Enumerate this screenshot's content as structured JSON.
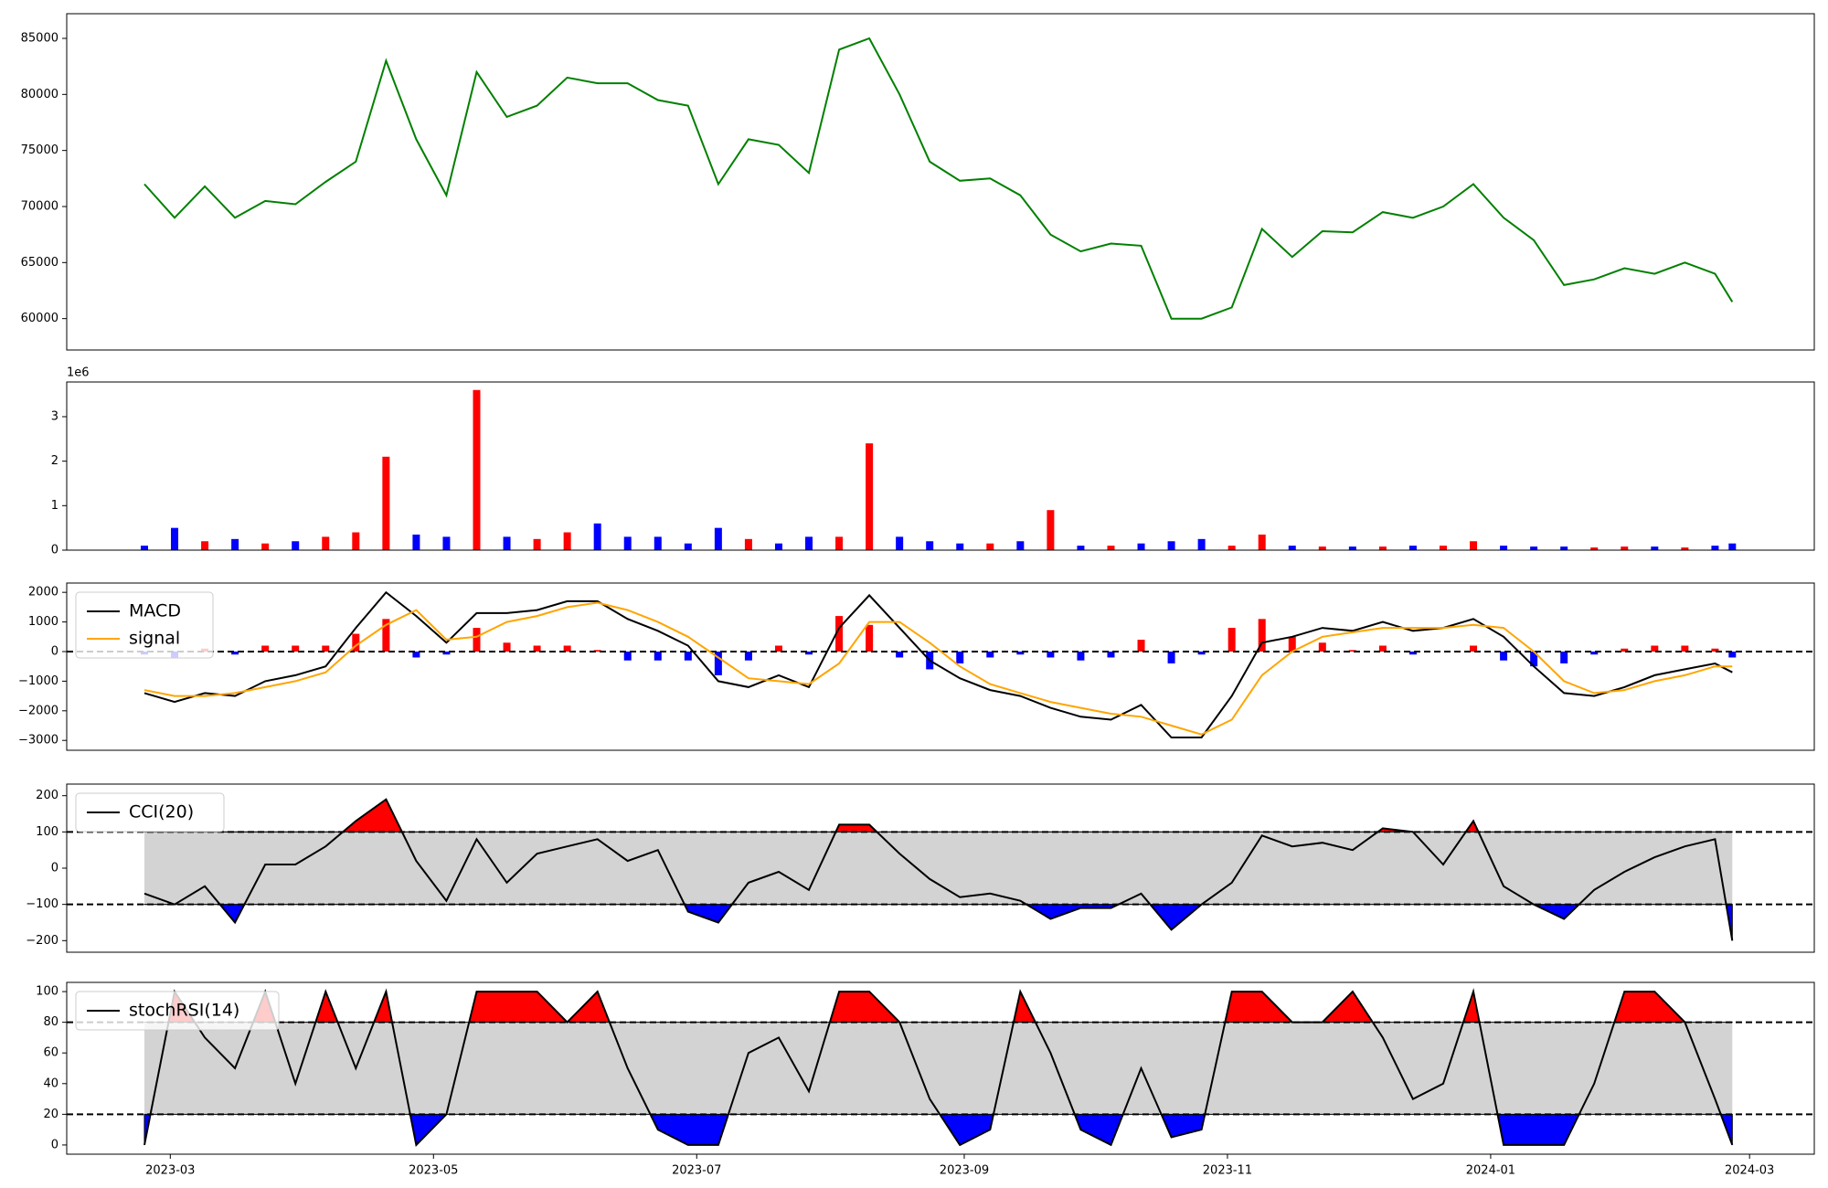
{
  "chart_data": [
    {
      "type": "line",
      "x": [
        "2023-02-23",
        "2023-03-02",
        "2023-03-09",
        "2023-03-16",
        "2023-03-23",
        "2023-03-30",
        "2023-04-06",
        "2023-04-13",
        "2023-04-20",
        "2023-04-27",
        "2023-05-04",
        "2023-05-11",
        "2023-05-18",
        "2023-05-25",
        "2023-06-01",
        "2023-06-08",
        "2023-06-15",
        "2023-06-22",
        "2023-06-29",
        "2023-07-06",
        "2023-07-13",
        "2023-07-20",
        "2023-07-27",
        "2023-08-03",
        "2023-08-10",
        "2023-08-17",
        "2023-08-24",
        "2023-08-31",
        "2023-09-07",
        "2023-09-14",
        "2023-09-21",
        "2023-09-28",
        "2023-10-05",
        "2023-10-12",
        "2023-10-19",
        "2023-10-26",
        "2023-11-02",
        "2023-11-09",
        "2023-11-16",
        "2023-11-23",
        "2023-11-30",
        "2023-12-07",
        "2023-12-14",
        "2023-12-21",
        "2023-12-28",
        "2024-01-04",
        "2024-01-11",
        "2024-01-18",
        "2024-01-25",
        "2024-02-01",
        "2024-02-08",
        "2024-02-15",
        "2024-02-22",
        "2024-02-26"
      ],
      "series": [
        {
          "color": "#008000",
          "values": [
            72000,
            69000,
            71800,
            69000,
            70500,
            70200,
            72200,
            74000,
            83000,
            76000,
            71000,
            82000,
            78000,
            79000,
            81500,
            81000,
            81000,
            79500,
            79000,
            72000,
            76000,
            75500,
            73000,
            84000,
            85000,
            80000,
            74000,
            72300,
            72500,
            71000,
            67500,
            66000,
            66700,
            66500,
            60000,
            60000,
            61000,
            68000,
            65500,
            67800,
            67700,
            69500,
            69000,
            70000,
            72000,
            69000,
            67000,
            63000,
            63500,
            64500,
            64000,
            65000,
            64000,
            61500
          ]
        }
      ],
      "xlim": [
        "2023-02-05",
        "2024-03-16"
      ],
      "ylim": [
        57200,
        87200
      ],
      "yticks": [
        60000,
        65000,
        70000,
        75000,
        80000,
        85000
      ]
    },
    {
      "type": "bar",
      "x": [
        "2023-02-23",
        "2023-03-02",
        "2023-03-09",
        "2023-03-16",
        "2023-03-23",
        "2023-03-30",
        "2023-04-06",
        "2023-04-13",
        "2023-04-20",
        "2023-04-27",
        "2023-05-04",
        "2023-05-11",
        "2023-05-18",
        "2023-05-25",
        "2023-06-01",
        "2023-06-08",
        "2023-06-15",
        "2023-06-22",
        "2023-06-29",
        "2023-07-06",
        "2023-07-13",
        "2023-07-20",
        "2023-07-27",
        "2023-08-03",
        "2023-08-10",
        "2023-08-17",
        "2023-08-24",
        "2023-08-31",
        "2023-09-07",
        "2023-09-14",
        "2023-09-21",
        "2023-09-28",
        "2023-10-05",
        "2023-10-12",
        "2023-10-19",
        "2023-10-26",
        "2023-11-02",
        "2023-11-09",
        "2023-11-16",
        "2023-11-23",
        "2023-11-30",
        "2023-12-07",
        "2023-12-14",
        "2023-12-21",
        "2023-12-28",
        "2024-01-04",
        "2024-01-11",
        "2024-01-18",
        "2024-01-25",
        "2024-02-01",
        "2024-02-08",
        "2024-02-15",
        "2024-02-22",
        "2024-02-26"
      ],
      "values": [
        100000,
        500000,
        200000,
        250000,
        150000,
        200000,
        300000,
        400000,
        2100000,
        350000,
        300000,
        3600000,
        300000,
        250000,
        400000,
        600000,
        300000,
        300000,
        150000,
        500000,
        250000,
        150000,
        300000,
        300000,
        2400000,
        300000,
        200000,
        150000,
        150000,
        200000,
        900000,
        100000,
        100000,
        150000,
        200000,
        250000,
        100000,
        350000,
        100000,
        80000,
        80000,
        80000,
        100000,
        100000,
        200000,
        100000,
        80000,
        80000,
        60000,
        80000,
        80000,
        60000,
        100000,
        150000
      ],
      "colors": [
        "blue",
        "blue",
        "red",
        "blue",
        "red",
        "blue",
        "red",
        "red",
        "red",
        "blue",
        "blue",
        "red",
        "blue",
        "red",
        "red",
        "blue",
        "blue",
        "blue",
        "blue",
        "blue",
        "red",
        "blue",
        "blue",
        "red",
        "red",
        "blue",
        "blue",
        "blue",
        "red",
        "blue",
        "red",
        "blue",
        "red",
        "blue",
        "blue",
        "blue",
        "red",
        "red",
        "blue",
        "red",
        "blue",
        "red",
        "blue",
        "red",
        "red",
        "blue",
        "blue",
        "blue",
        "red",
        "red",
        "blue",
        "red",
        "blue",
        "blue"
      ],
      "xlim": [
        "2023-02-05",
        "2024-03-16"
      ],
      "ylim": [
        0,
        3780000
      ],
      "yticks": [
        0,
        {
          "value": 1000000,
          "label": "1"
        },
        {
          "value": 2000000,
          "label": "2"
        },
        {
          "value": 3000000,
          "label": "3"
        }
      ],
      "y_offset_label": "1e6"
    },
    {
      "type": "macd",
      "x": [
        "2023-02-23",
        "2023-03-02",
        "2023-03-09",
        "2023-03-16",
        "2023-03-23",
        "2023-03-30",
        "2023-04-06",
        "2023-04-13",
        "2023-04-20",
        "2023-04-27",
        "2023-05-04",
        "2023-05-11",
        "2023-05-18",
        "2023-05-25",
        "2023-06-01",
        "2023-06-08",
        "2023-06-15",
        "2023-06-22",
        "2023-06-29",
        "2023-07-06",
        "2023-07-13",
        "2023-07-20",
        "2023-07-27",
        "2023-08-03",
        "2023-08-10",
        "2023-08-17",
        "2023-08-24",
        "2023-08-31",
        "2023-09-07",
        "2023-09-14",
        "2023-09-21",
        "2023-09-28",
        "2023-10-05",
        "2023-10-12",
        "2023-10-19",
        "2023-10-26",
        "2023-11-02",
        "2023-11-09",
        "2023-11-16",
        "2023-11-23",
        "2023-11-30",
        "2023-12-07",
        "2023-12-14",
        "2023-12-21",
        "2023-12-28",
        "2024-01-04",
        "2024-01-11",
        "2024-01-18",
        "2024-01-25",
        "2024-02-01",
        "2024-02-08",
        "2024-02-15",
        "2024-02-22",
        "2024-02-26"
      ],
      "series": [
        {
          "name": "MACD",
          "color": "#000000",
          "values": [
            -1400,
            -1700,
            -1400,
            -1500,
            -1000,
            -800,
            -500,
            800,
            2000,
            1200,
            300,
            1300,
            1300,
            1400,
            1700,
            1700,
            1100,
            700,
            200,
            -1000,
            -1200,
            -800,
            -1200,
            800,
            1900,
            800,
            -300,
            -900,
            -1300,
            -1500,
            -1900,
            -2200,
            -2300,
            -1800,
            -2900,
            -2900,
            -1500,
            300,
            500,
            800,
            700,
            1000,
            700,
            800,
            1100,
            500,
            -500,
            -1400,
            -1500,
            -1200,
            -800,
            -600,
            -400,
            -700
          ]
        },
        {
          "name": "signal",
          "color": "#ffa500",
          "values": [
            -1300,
            -1500,
            -1500,
            -1400,
            -1200,
            -1000,
            -700,
            200,
            900,
            1400,
            400,
            500,
            1000,
            1200,
            1500,
            1650,
            1400,
            1000,
            500,
            -200,
            -900,
            -1000,
            -1100,
            -400,
            1000,
            1000,
            300,
            -500,
            -1100,
            -1400,
            -1700,
            -1900,
            -2100,
            -2200,
            -2500,
            -2800,
            -2300,
            -800,
            0,
            500,
            650,
            800,
            800,
            800,
            900,
            800,
            0,
            -1000,
            -1400,
            -1300,
            -1000,
            -800,
            -500,
            -500
          ]
        }
      ],
      "histogram": [
        -100,
        -200,
        100,
        -100,
        200,
        200,
        200,
        600,
        1100,
        -200,
        -100,
        800,
        300,
        200,
        200,
        50,
        -300,
        -300,
        -300,
        -800,
        -300,
        200,
        -100,
        1200,
        900,
        -200,
        -600,
        -400,
        -200,
        -100,
        -200,
        -300,
        -200,
        400,
        -400,
        -100,
        800,
        1100,
        500,
        300,
        50,
        200,
        -100,
        0,
        200,
        -300,
        -500,
        -400,
        -100,
        100,
        200,
        200,
        100,
        -200
      ],
      "up_color": "#ff0000",
      "down_color": "#0000ff",
      "hline": 0,
      "legend": "upper left",
      "xlim": [
        "2023-02-05",
        "2024-03-16"
      ],
      "ylim": [
        -3333,
        2314
      ],
      "yticks": [
        {
          "value": -3000,
          "label": "−3000"
        },
        {
          "value": -2000,
          "label": "−2000"
        },
        {
          "value": -1000,
          "label": "−1000"
        },
        0,
        1000,
        2000
      ]
    },
    {
      "type": "oscillator",
      "x": [
        "2023-02-23",
        "2023-03-02",
        "2023-03-09",
        "2023-03-16",
        "2023-03-23",
        "2023-03-30",
        "2023-04-06",
        "2023-04-13",
        "2023-04-20",
        "2023-04-27",
        "2023-05-04",
        "2023-05-11",
        "2023-05-18",
        "2023-05-25",
        "2023-06-01",
        "2023-06-08",
        "2023-06-15",
        "2023-06-22",
        "2023-06-29",
        "2023-07-06",
        "2023-07-13",
        "2023-07-20",
        "2023-07-27",
        "2023-08-03",
        "2023-08-10",
        "2023-08-17",
        "2023-08-24",
        "2023-08-31",
        "2023-09-07",
        "2023-09-14",
        "2023-09-21",
        "2023-09-28",
        "2023-10-05",
        "2023-10-12",
        "2023-10-19",
        "2023-10-26",
        "2023-11-02",
        "2023-11-09",
        "2023-11-16",
        "2023-11-23",
        "2023-11-30",
        "2023-12-07",
        "2023-12-14",
        "2023-12-21",
        "2023-12-28",
        "2024-01-04",
        "2024-01-11",
        "2024-01-18",
        "2024-01-25",
        "2024-02-01",
        "2024-02-08",
        "2024-02-15",
        "2024-02-22",
        "2024-02-26"
      ],
      "series": [
        {
          "name": "CCI(20)",
          "color": "#000000",
          "values": [
            -70,
            -100,
            -50,
            -150,
            10,
            10,
            60,
            130,
            190,
            20,
            -90,
            80,
            -40,
            40,
            60,
            80,
            20,
            50,
            -120,
            -150,
            -40,
            -10,
            -60,
            120,
            120,
            40,
            -30,
            -80,
            -70,
            -90,
            -140,
            -110,
            -110,
            -70,
            -170,
            -100,
            -40,
            90,
            60,
            70,
            50,
            110,
            100,
            10,
            130,
            -50,
            -100,
            -140,
            -60,
            -10,
            30,
            60,
            80,
            -200
          ]
        }
      ],
      "upper": 100,
      "lower": -100,
      "band_color": "#d3d3d3",
      "up_color": "#ff0000",
      "down_color": "#0000ff",
      "legend": "upper left",
      "xlim": [
        "2023-02-05",
        "2024-03-16"
      ],
      "ylim": [
        -232,
        232
      ],
      "yticks": [
        {
          "value": -200,
          "label": "−200"
        },
        {
          "value": -100,
          "label": "−100"
        },
        0,
        100,
        200
      ]
    },
    {
      "type": "oscillator",
      "x": [
        "2023-02-23",
        "2023-03-02",
        "2023-03-09",
        "2023-03-16",
        "2023-03-23",
        "2023-03-30",
        "2023-04-06",
        "2023-04-13",
        "2023-04-20",
        "2023-04-27",
        "2023-05-04",
        "2023-05-11",
        "2023-05-18",
        "2023-05-25",
        "2023-06-01",
        "2023-06-08",
        "2023-06-15",
        "2023-06-22",
        "2023-06-29",
        "2023-07-06",
        "2023-07-13",
        "2023-07-20",
        "2023-07-27",
        "2023-08-03",
        "2023-08-10",
        "2023-08-17",
        "2023-08-24",
        "2023-08-31",
        "2023-09-07",
        "2023-09-14",
        "2023-09-21",
        "2023-09-28",
        "2023-10-05",
        "2023-10-12",
        "2023-10-19",
        "2023-10-26",
        "2023-11-02",
        "2023-11-09",
        "2023-11-16",
        "2023-11-23",
        "2023-11-30",
        "2023-12-07",
        "2023-12-14",
        "2023-12-21",
        "2023-12-28",
        "2024-01-04",
        "2024-01-11",
        "2024-01-18",
        "2024-01-25",
        "2024-02-01",
        "2024-02-08",
        "2024-02-15",
        "2024-02-22",
        "2024-02-26"
      ],
      "series": [
        {
          "name": "stochRSI(14)",
          "color": "#000000",
          "values": [
            0,
            100,
            70,
            50,
            100,
            40,
            100,
            50,
            100,
            0,
            20,
            100,
            100,
            100,
            80,
            100,
            50,
            10,
            0,
            0,
            60,
            70,
            35,
            100,
            100,
            80,
            30,
            0,
            10,
            100,
            60,
            10,
            0,
            50,
            5,
            10,
            100,
            100,
            80,
            80,
            100,
            70,
            30,
            40,
            100,
            0,
            0,
            0,
            40,
            100,
            100,
            80,
            30,
            0
          ]
        }
      ],
      "upper": 80,
      "lower": 20,
      "band_color": "#d3d3d3",
      "up_color": "#ff0000",
      "down_color": "#0000ff",
      "legend": "upper left",
      "xlim": [
        "2023-02-05",
        "2024-03-16"
      ],
      "ylim": [
        -6,
        106
      ],
      "yticks": [
        0,
        20,
        40,
        60,
        80,
        100
      ],
      "xticks": [
        "2023-03",
        "2023-05",
        "2023-07",
        "2023-09",
        "2023-11",
        "2024-01",
        "2024-03"
      ]
    }
  ]
}
